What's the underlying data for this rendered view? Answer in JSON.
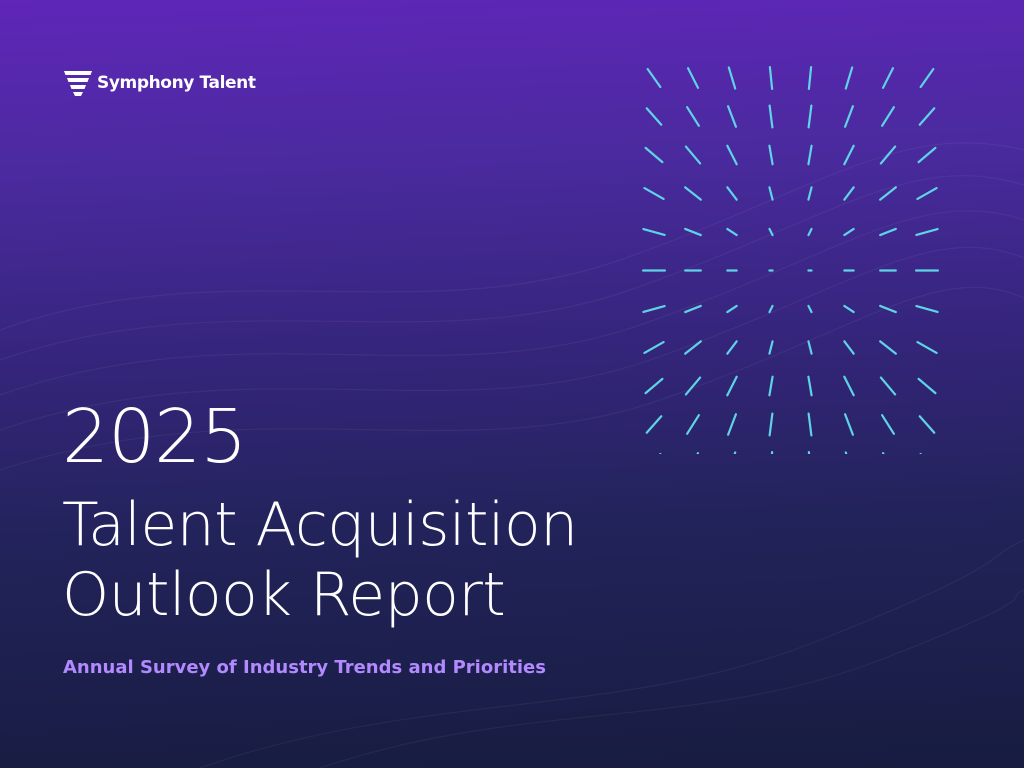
{
  "brand": {
    "name": "Symphony Talent",
    "logo_icon": "symphony-talent-logo-icon"
  },
  "cover": {
    "year": "2025",
    "title_line1": "Talent Acquisition",
    "title_line2": "Outlook Report",
    "subtitle": "Annual Survey of Industry Trends and Priorities"
  },
  "colors": {
    "background_top": "#5f26b8",
    "background_bottom": "#171c40",
    "accent_cyan": "#5fd3e6",
    "subtitle_purple": "#b289ff",
    "text": "#ffffff"
  },
  "decoration": {
    "pattern_icon": "radiating-lines-grid-icon"
  }
}
